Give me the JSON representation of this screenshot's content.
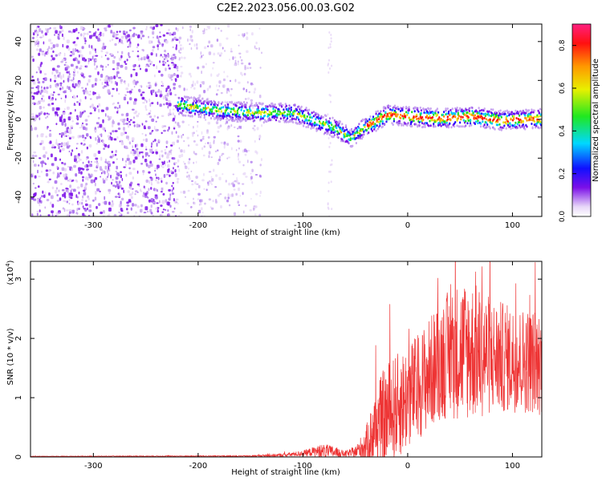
{
  "title": "C2E2.2023.056.00.03.G02",
  "chart_data": [
    {
      "type": "heatmap",
      "xlabel": "Height of straight line (km)",
      "ylabel": "Frequency (Hz)",
      "xlim": [
        -360,
        128
      ],
      "ylim": [
        -50,
        49
      ],
      "xticks": [
        -300,
        -200,
        -100,
        0,
        100
      ],
      "yticks": [
        -40,
        -20,
        0,
        20,
        40
      ],
      "colorbar": {
        "label": "Normalized spectral amplitude",
        "range": [
          0.0,
          0.9
        ],
        "ticks": [
          0.0,
          0.2,
          0.4,
          0.6,
          0.8
        ]
      },
      "features": [
        {
          "name": "broadband noise",
          "x_range": [
            -360,
            -220
          ],
          "y_range": [
            -50,
            49
          ]
        },
        {
          "name": "fading noise",
          "x_range": [
            -220,
            -140
          ],
          "y_range": [
            -50,
            49
          ]
        },
        {
          "name": "signal track",
          "x": [
            -220,
            -180,
            -140,
            -110,
            -90,
            -70,
            -55,
            -40,
            -20,
            0,
            30,
            60,
            90,
            128
          ],
          "freq": [
            8,
            5,
            4,
            4,
            0,
            -4,
            -9,
            -3,
            3,
            2,
            1,
            2,
            0,
            1
          ]
        }
      ]
    },
    {
      "type": "line",
      "xlabel": "Height of straight line (km)",
      "ylabel": "SNR (10 * v/v)",
      "y_multiplier": "(x10",
      "y_multiplier_exp": "4",
      "xlim": [
        -360,
        128
      ],
      "ylim": [
        0,
        3.3
      ],
      "xticks": [
        -300,
        -200,
        -100,
        0,
        100
      ],
      "yticks": [
        0,
        1,
        2,
        3
      ],
      "color": "#ee3333",
      "envelope": {
        "x": [
          -360,
          -150,
          -120,
          -100,
          -90,
          -80,
          -70,
          -60,
          -50,
          -40,
          -30,
          -20,
          -10,
          0,
          10,
          20,
          30,
          40,
          50,
          60,
          80,
          100,
          128
        ],
        "mean": [
          0.01,
          0.015,
          0.03,
          0.06,
          0.09,
          0.1,
          0.08,
          0.05,
          0.08,
          0.2,
          0.5,
          0.7,
          0.85,
          1.0,
          1.2,
          1.4,
          1.6,
          1.75,
          1.8,
          1.8,
          1.7,
          1.65,
          1.6
        ],
        "amp": [
          0.005,
          0.01,
          0.03,
          0.05,
          0.08,
          0.12,
          0.1,
          0.05,
          0.1,
          0.3,
          0.7,
          0.9,
          0.9,
          0.9,
          0.9,
          0.95,
          1.0,
          1.1,
          1.2,
          1.2,
          1.0,
          0.9,
          0.9
        ]
      }
    }
  ]
}
